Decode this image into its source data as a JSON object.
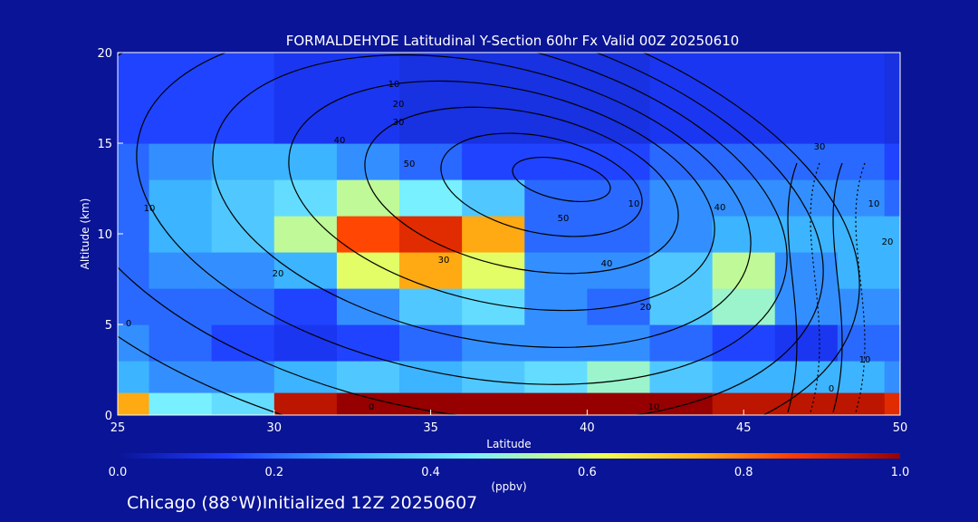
{
  "chart_data": {
    "type": "heatmap",
    "title": "FORMALDEHYDE Latitudinal Y-Section 60hr  Fx Valid 00Z 20250610",
    "xlabel": "Latitude",
    "ylabel": "Altitude (km)",
    "xlim": [
      25,
      50
    ],
    "ylim": [
      0,
      20
    ],
    "x_ticks": [
      "25",
      "30",
      "35",
      "40",
      "45",
      "50"
    ],
    "y_ticks": [
      "0",
      "5",
      "10",
      "15",
      "20"
    ],
    "colorbar": {
      "label": "(ppbv)",
      "range": [
        0.0,
        1.0
      ],
      "ticks": [
        "0.0",
        "0.2",
        "0.4",
        "0.6",
        "0.8",
        "1.0"
      ],
      "colors": [
        "#0a1496",
        "#1e3cff",
        "#3cb4ff",
        "#78f0ff",
        "#f0ff50",
        "#ffb414",
        "#ff3c00",
        "#960000"
      ]
    },
    "contour_labels": [
      "10",
      "20",
      "30",
      "40",
      "50",
      "30",
      "40",
      "50",
      "20",
      "10",
      "0",
      "10",
      "20",
      "30",
      "40",
      "0",
      "10",
      "20",
      "10",
      "0",
      "10"
    ],
    "lat": [
      25,
      27,
      29,
      31,
      33,
      35,
      37,
      39,
      41,
      43,
      45,
      47,
      49,
      50
    ],
    "alt": [
      0.5,
      2,
      4,
      6,
      8,
      10,
      12,
      14,
      16
    ],
    "values": [
      [
        0.75,
        0.45,
        0.4,
        0.95,
        1.0,
        1.0,
        1.0,
        1.0,
        1.0,
        1.0,
        0.95,
        0.95,
        0.95,
        0.9
      ],
      [
        0.3,
        0.25,
        0.25,
        0.3,
        0.35,
        0.3,
        0.35,
        0.4,
        0.5,
        0.35,
        0.3,
        0.3,
        0.3,
        0.25
      ],
      [
        0.25,
        0.2,
        0.15,
        0.12,
        0.15,
        0.2,
        0.25,
        0.25,
        0.25,
        0.2,
        0.15,
        0.12,
        0.2,
        0.2
      ],
      [
        0.2,
        0.2,
        0.2,
        0.15,
        0.25,
        0.35,
        0.4,
        0.25,
        0.2,
        0.35,
        0.5,
        0.25,
        0.25,
        0.25
      ],
      [
        0.2,
        0.25,
        0.25,
        0.3,
        0.6,
        0.75,
        0.6,
        0.25,
        0.25,
        0.35,
        0.55,
        0.25,
        0.3,
        0.3
      ],
      [
        0.2,
        0.3,
        0.35,
        0.55,
        0.85,
        0.9,
        0.75,
        0.2,
        0.2,
        0.25,
        0.3,
        0.3,
        0.3,
        0.3
      ],
      [
        0.2,
        0.3,
        0.35,
        0.4,
        0.55,
        0.45,
        0.35,
        0.2,
        0.2,
        0.25,
        0.25,
        0.25,
        0.25,
        0.2
      ],
      [
        0.2,
        0.25,
        0.3,
        0.3,
        0.25,
        0.2,
        0.15,
        0.15,
        0.15,
        0.2,
        0.2,
        0.2,
        0.2,
        0.15
      ],
      [
        0.15,
        0.15,
        0.15,
        0.12,
        0.12,
        0.1,
        0.1,
        0.1,
        0.1,
        0.12,
        0.12,
        0.12,
        0.12,
        0.1
      ]
    ]
  },
  "footer": {
    "location_text": "Chicago (88°W)Initialized 12Z 20250607"
  }
}
